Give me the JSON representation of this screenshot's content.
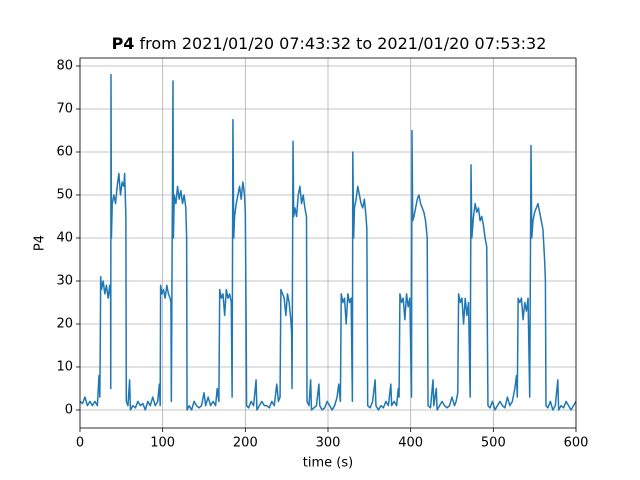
{
  "chart_data": {
    "type": "line",
    "title_parts": [
      "P4",
      "from 2021/01/20 07:43:32 to 2021/01/20 07:53:32"
    ],
    "x_label": "time (s)",
    "y_label": "P4",
    "color": "#1f77b4",
    "grid": true,
    "xlim": [
      0,
      600
    ],
    "ylim": [
      -4.19,
      81.86
    ],
    "xticks": [
      0,
      100,
      200,
      300,
      400,
      500,
      600
    ],
    "yticks": [
      0,
      10,
      20,
      30,
      40,
      50,
      60,
      70,
      80
    ],
    "x": [
      0,
      3,
      6,
      9,
      12,
      15,
      18,
      21,
      23,
      24,
      24.5,
      25,
      26,
      28,
      30,
      32,
      34,
      36,
      37,
      37.2,
      37.5,
      38,
      39,
      41,
      43,
      45,
      47,
      49,
      51,
      53,
      54,
      55.5,
      56,
      58,
      60,
      61,
      64,
      67,
      70,
      73,
      76,
      79,
      82,
      85,
      88,
      91,
      94,
      96,
      97,
      97.5,
      99,
      101,
      103,
      105,
      107,
      109,
      110,
      110.5,
      112.5,
      113,
      114,
      116,
      118,
      120,
      122,
      124,
      126,
      128,
      129,
      129.5,
      132,
      135,
      138,
      141,
      144,
      147,
      150,
      152,
      155,
      158,
      161,
      164,
      166,
      168,
      169,
      171,
      173,
      175,
      177,
      179,
      181,
      183,
      184,
      185,
      186,
      187,
      189,
      191,
      193,
      195,
      197,
      199,
      200,
      201,
      201.5,
      204,
      207,
      210,
      213,
      214,
      217,
      220,
      223,
      226,
      229,
      232,
      235,
      238,
      240,
      242,
      243,
      245,
      247,
      249,
      251,
      253,
      255,
      256,
      256.5,
      257.7,
      258.5,
      260,
      262,
      264,
      266,
      268,
      270,
      272,
      274,
      274.6,
      277,
      279,
      280,
      283,
      286,
      289,
      290,
      293,
      296,
      299,
      302,
      305,
      308,
      311,
      313,
      315,
      316,
      318,
      320,
      322,
      324,
      326,
      328,
      329.5,
      330,
      331,
      332,
      334,
      336,
      338,
      340,
      342,
      344,
      346,
      347,
      348,
      351,
      354,
      357,
      358,
      361,
      364,
      367,
      370,
      373,
      376,
      377,
      380,
      383,
      385,
      386,
      387,
      389,
      391,
      393,
      395,
      397,
      399,
      401,
      401.6,
      402.5,
      404,
      406,
      408,
      410,
      412,
      414,
      416,
      418,
      420,
      421,
      424,
      427,
      428,
      431,
      432,
      435,
      438,
      441,
      444,
      447,
      450,
      453,
      455,
      457,
      458,
      460,
      462,
      464,
      466,
      468,
      470,
      472,
      473,
      474,
      476,
      478,
      480,
      482,
      484,
      486,
      488,
      490,
      492,
      493.5,
      496,
      499,
      502,
      505,
      508,
      511,
      514,
      517,
      520,
      523,
      526,
      528,
      529,
      530,
      532,
      534,
      536,
      538,
      540,
      542,
      544,
      545.6,
      546.5,
      548,
      550,
      552,
      554,
      556,
      558,
      560,
      562,
      563,
      563.7,
      566,
      569,
      572,
      575,
      578,
      579,
      582,
      585,
      588,
      591,
      594,
      597,
      600
    ],
    "values": [
      2,
      1.5,
      3,
      1,
      2,
      1,
      2,
      1,
      8,
      3,
      15,
      31,
      28,
      30,
      27,
      29,
      26,
      29,
      26,
      5,
      78,
      40,
      48,
      50,
      48,
      52,
      55,
      50,
      53,
      52,
      55,
      45,
      2,
      1,
      7,
      0,
      1,
      0.5,
      2,
      1,
      1.5,
      0,
      2,
      1,
      3,
      1,
      2,
      6,
      1,
      29,
      27,
      28,
      26,
      29,
      27,
      26,
      25,
      2,
      76.5,
      40,
      50,
      48,
      52,
      49,
      51,
      48,
      50,
      47,
      40,
      0,
      1,
      0,
      2,
      1,
      0.5,
      1,
      4,
      1,
      3,
      1,
      2,
      1,
      5,
      2,
      28,
      26,
      27,
      22,
      28,
      26,
      27,
      25,
      3,
      67.5,
      40,
      45,
      48,
      50,
      52,
      49,
      53,
      50,
      46,
      20,
      1,
      0.5,
      2,
      1,
      7,
      0,
      1,
      2,
      1,
      1,
      0.5,
      2,
      1,
      6,
      2,
      3,
      28,
      27,
      26,
      22,
      27,
      25,
      21,
      18,
      5,
      62.5,
      45,
      47,
      45,
      50,
      52,
      48,
      50,
      47,
      45,
      2,
      1,
      7,
      0,
      0.5,
      1,
      6,
      1,
      0,
      0.5,
      2,
      1,
      0,
      1,
      3,
      6,
      2,
      27,
      25,
      26,
      20,
      27,
      25,
      26,
      2,
      60,
      40,
      47,
      49,
      52,
      50,
      48,
      47,
      49,
      45,
      42,
      1,
      0.5,
      2,
      7,
      1,
      0,
      1,
      0.5,
      2,
      1,
      6,
      1,
      2,
      1,
      5,
      3,
      27,
      25,
      26,
      21,
      27,
      24,
      26,
      3,
      65,
      44,
      45,
      47,
      49,
      50,
      48,
      47,
      46,
      44,
      40,
      1,
      0.5,
      7,
      1,
      5,
      0,
      1,
      2,
      1,
      0.5,
      1,
      3,
      1,
      2,
      4,
      27,
      25,
      26,
      20,
      26,
      22,
      25,
      3,
      57,
      40,
      45,
      48,
      46,
      47,
      44,
      45,
      43,
      40,
      38,
      1,
      0.5,
      2,
      0,
      1,
      2,
      1,
      0.5,
      3,
      1,
      2,
      5,
      8,
      3,
      26,
      25,
      26,
      21,
      25,
      23,
      26,
      3,
      61.5,
      40,
      44,
      46,
      47,
      48,
      46,
      44,
      42,
      35,
      30,
      1,
      0.5,
      2,
      0,
      1,
      7,
      0,
      1,
      0.5,
      2,
      1,
      0,
      1,
      2
    ]
  }
}
